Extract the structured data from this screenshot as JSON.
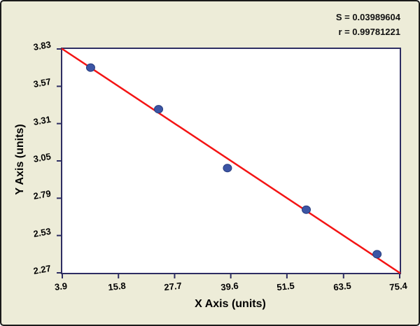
{
  "stats": {
    "s_label": "S = 0.03989604",
    "r_label": "r = 0.99781221"
  },
  "chart_data": {
    "type": "scatter",
    "title": "",
    "xlabel": "X Axis (units)",
    "ylabel": "Y Axis (units)",
    "xlim": [
      3.9,
      75.4
    ],
    "ylim": [
      2.27,
      3.83
    ],
    "x_ticks": [
      3.9,
      15.8,
      27.7,
      39.6,
      51.5,
      63.5,
      75.4
    ],
    "x_tick_labels": [
      "3.9",
      "15.8",
      "27.7",
      "39.6",
      "51.5",
      "63.5",
      "75.4"
    ],
    "y_ticks": [
      2.27,
      2.53,
      2.79,
      3.05,
      3.31,
      3.57,
      3.83
    ],
    "y_tick_labels": [
      "2.27",
      "2.53",
      "2.79",
      "3.05",
      "3.31",
      "3.57",
      "3.83"
    ],
    "points": [
      [
        9.9,
        3.7
      ],
      [
        24.3,
        3.41
      ],
      [
        38.9,
        3.0
      ],
      [
        55.6,
        2.71
      ],
      [
        70.6,
        2.4
      ]
    ],
    "fit_line": {
      "x": [
        3.9,
        75.4
      ],
      "y": [
        3.83,
        2.27
      ]
    },
    "annotations": [
      "S = 0.03989604",
      "r = 0.99781221"
    ],
    "legend": "none",
    "grid": false,
    "colors": {
      "point_fill": "#3c55a5",
      "point_edge": "#273c7d",
      "line": "#f41414",
      "axis": "#2e2e63",
      "plot_bg": "#ffffff",
      "canvas_bg": "#edecd8"
    }
  }
}
